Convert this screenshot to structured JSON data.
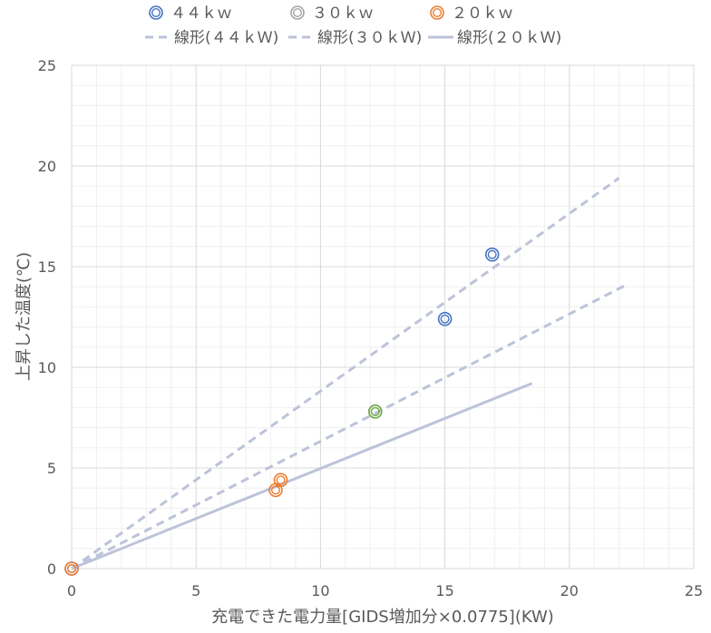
{
  "chart_data": {
    "type": "scatter",
    "xlabel": "充電できた電力量[GIDS増加分×0.0775](KW)",
    "ylabel": "上昇した温度(℃)",
    "xlim": [
      0,
      25
    ],
    "ylim": [
      0,
      25
    ],
    "x_ticks": [
      "0",
      "5",
      "10",
      "15",
      "20",
      "25"
    ],
    "y_ticks": [
      "0",
      "5",
      "10",
      "15",
      "20",
      "25"
    ],
    "grid": true,
    "legend_position": "top",
    "series": [
      {
        "name": "４４ｋｗ",
        "color": "#4472C4",
        "points": [
          [
            0,
            0
          ],
          [
            15,
            12.4
          ],
          [
            16.9,
            15.6
          ]
        ]
      },
      {
        "name": "３０ｋｗ",
        "color": "#A5A5A5",
        "points": [
          [
            0,
            0
          ],
          [
            12.2,
            7.8
          ]
        ]
      },
      {
        "name": "２０ｋｗ",
        "color": "#ED7D31",
        "points": [
          [
            0,
            0
          ],
          [
            8.2,
            3.9
          ],
          [
            8.4,
            4.4
          ]
        ]
      }
    ],
    "extra_points": [
      {
        "color": "#70AD47",
        "x": 12.2,
        "y": 7.8
      }
    ],
    "trendlines": [
      {
        "name": "線形(４４ｋＷ)",
        "style": "dashed",
        "color": "#BCC3D9",
        "from": [
          0,
          0
        ],
        "to": [
          22,
          19.4
        ]
      },
      {
        "name": "線形(３０ｋＷ)",
        "style": "dashed",
        "color": "#BCC3D9",
        "from": [
          0,
          0
        ],
        "to": [
          22.3,
          14.1
        ]
      },
      {
        "name": "線形(２０ｋＷ)",
        "style": "solid",
        "color": "#BCC3D9",
        "from": [
          0,
          0
        ],
        "to": [
          18.5,
          9.2
        ]
      }
    ]
  }
}
